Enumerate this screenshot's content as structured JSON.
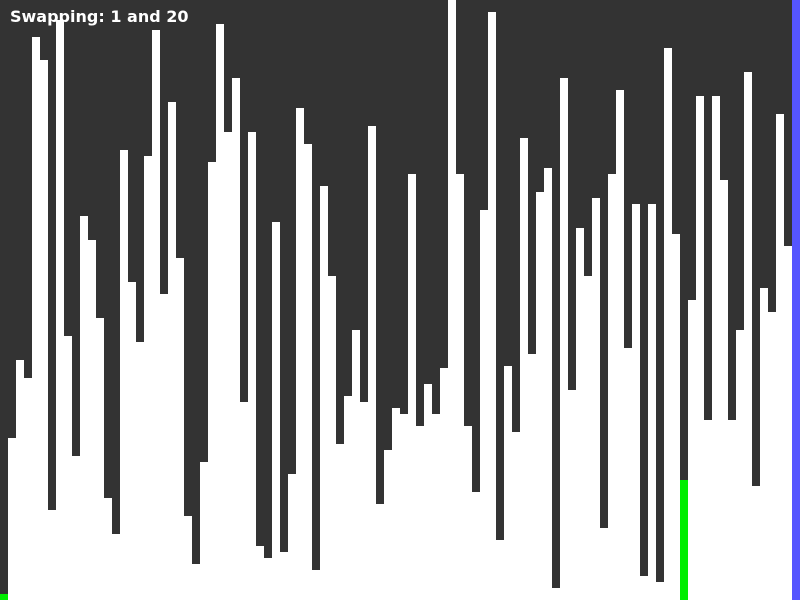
{
  "status": {
    "prefix": "Swapping: ",
    "index_a": "1",
    "separator": " and ",
    "index_b": "20"
  },
  "colors": {
    "background": "#333333",
    "bar_default": "#ffffff",
    "bar_compare": "#00ee00",
    "bar_active": "#5555ff"
  },
  "sort_visualizer": {
    "scale_max": 600,
    "bar_count": 100,
    "highlight": {
      "compare_indices": [
        0,
        85
      ],
      "active_indices": [
        99
      ]
    },
    "values": [
      6,
      162,
      240,
      222,
      563,
      540,
      90,
      580,
      264,
      144,
      384,
      360,
      282,
      102,
      66,
      450,
      318,
      258,
      444,
      570,
      306,
      498,
      342,
      84,
      36,
      138,
      438,
      576,
      468,
      522,
      198,
      468,
      54,
      42,
      378,
      48,
      126,
      492,
      456,
      30,
      414,
      324,
      156,
      204,
      270,
      198,
      474,
      96,
      150,
      192,
      186,
      426,
      174,
      216,
      186,
      232,
      600,
      426,
      174,
      108,
      390,
      588,
      60,
      234,
      168,
      462,
      246,
      408,
      432,
      12,
      522,
      210,
      372,
      324,
      402,
      72,
      426,
      510,
      252,
      396,
      24,
      396,
      18,
      552,
      366,
      120,
      300,
      504,
      180,
      504,
      420,
      180,
      270,
      528,
      114,
      312,
      288,
      486,
      354,
      600
    ]
  }
}
